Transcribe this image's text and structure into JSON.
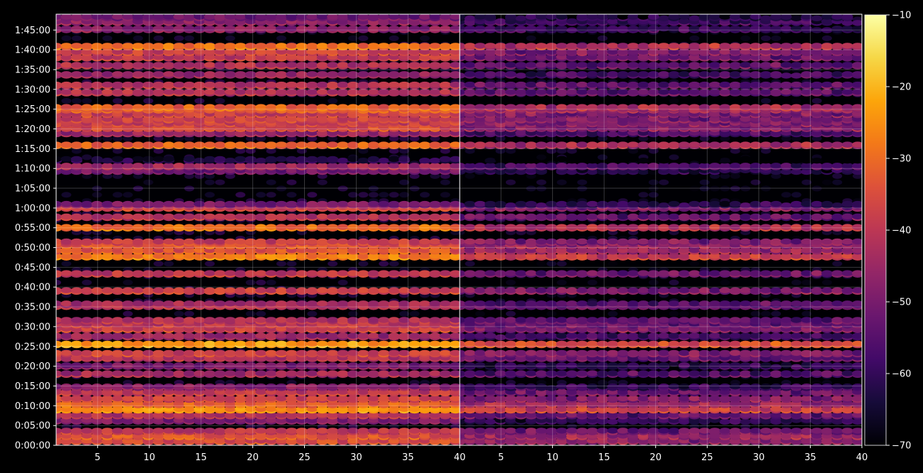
{
  "chart_data": {
    "type": "heatmap",
    "title": "",
    "colormap": "inferno",
    "background_color": "#000000",
    "grid": true,
    "panels": [
      {
        "name": "",
        "x_range": [
          1,
          40
        ],
        "x_ticks": [
          "5",
          "10",
          "15",
          "20",
          "25",
          "30",
          "35",
          "40"
        ],
        "y_range_seconds": [
          0,
          6540
        ],
        "intensity": "strong"
      },
      {
        "name": "",
        "x_range": [
          1,
          40
        ],
        "x_ticks": [
          "5",
          "10",
          "15",
          "20",
          "25",
          "30",
          "35",
          "40"
        ],
        "y_range_seconds": [
          0,
          6540
        ],
        "intensity": "weak"
      }
    ],
    "y_ticks": [
      "0:00:00",
      "0:05:00",
      "0:10:00",
      "0:15:00",
      "0:20:00",
      "0:25:00",
      "0:30:00",
      "0:35:00",
      "0:40:00",
      "0:45:00",
      "0:50:00",
      "0:55:00",
      "1:00:00",
      "1:05:00",
      "1:10:00",
      "1:15:00",
      "1:20:00",
      "1:25:00",
      "1:30:00",
      "1:35:00",
      "1:40:00",
      "1:45:00"
    ],
    "colorbar": {
      "range": [
        -70,
        -10
      ],
      "ticks": [
        "−10",
        "−20",
        "−30",
        "−40",
        "−50",
        "−60",
        "−70"
      ],
      "tick_values": [
        -10,
        -20,
        -30,
        -40,
        -50,
        -60,
        -70
      ]
    },
    "bands": [
      {
        "t": 60,
        "level": -34
      },
      {
        "t": 135,
        "level": -32
      },
      {
        "t": 210,
        "level": -38
      },
      {
        "t": 370,
        "level": -48
      },
      {
        "t": 450,
        "level": -40
      },
      {
        "t": 540,
        "level": -24
      },
      {
        "t": 620,
        "level": -30
      },
      {
        "t": 700,
        "level": -36
      },
      {
        "t": 800,
        "level": -38
      },
      {
        "t": 880,
        "level": -46
      },
      {
        "t": 1080,
        "level": -42
      },
      {
        "t": 1200,
        "level": -48
      },
      {
        "t": 1320,
        "level": -40
      },
      {
        "t": 1390,
        "level": -36
      },
      {
        "t": 1530,
        "level": -22
      },
      {
        "t": 1650,
        "level": -44
      },
      {
        "t": 1760,
        "level": -36
      },
      {
        "t": 1830,
        "level": -38
      },
      {
        "t": 1890,
        "level": -40
      },
      {
        "t": 2110,
        "level": -40
      },
      {
        "t": 2140,
        "level": -42
      },
      {
        "t": 2340,
        "level": -36
      },
      {
        "t": 2600,
        "level": -38
      },
      {
        "t": 2860,
        "level": -26
      },
      {
        "t": 2950,
        "level": -32
      },
      {
        "t": 3030,
        "level": -32
      },
      {
        "t": 3080,
        "level": -36
      },
      {
        "t": 3300,
        "level": -28
      },
      {
        "t": 3460,
        "level": -40
      },
      {
        "t": 3600,
        "level": -36
      },
      {
        "t": 3650,
        "level": -48
      },
      {
        "t": 4160,
        "level": -50
      },
      {
        "t": 4230,
        "level": -42
      },
      {
        "t": 4330,
        "level": -62
      },
      {
        "t": 4550,
        "level": -30
      },
      {
        "t": 4730,
        "level": -44
      },
      {
        "t": 4810,
        "level": -34
      },
      {
        "t": 4880,
        "level": -36
      },
      {
        "t": 4940,
        "level": -36
      },
      {
        "t": 5020,
        "level": -36
      },
      {
        "t": 5090,
        "level": -32
      },
      {
        "t": 5120,
        "level": -30
      },
      {
        "t": 5350,
        "level": -40
      },
      {
        "t": 5460,
        "level": -40
      },
      {
        "t": 5620,
        "level": -44
      },
      {
        "t": 5760,
        "level": -40
      },
      {
        "t": 5880,
        "level": -38
      },
      {
        "t": 5960,
        "level": -36
      },
      {
        "t": 6050,
        "level": -28
      },
      {
        "t": 6310,
        "level": -46
      },
      {
        "t": 6420,
        "level": -46
      },
      {
        "t": 6490,
        "level": -50
      }
    ]
  }
}
